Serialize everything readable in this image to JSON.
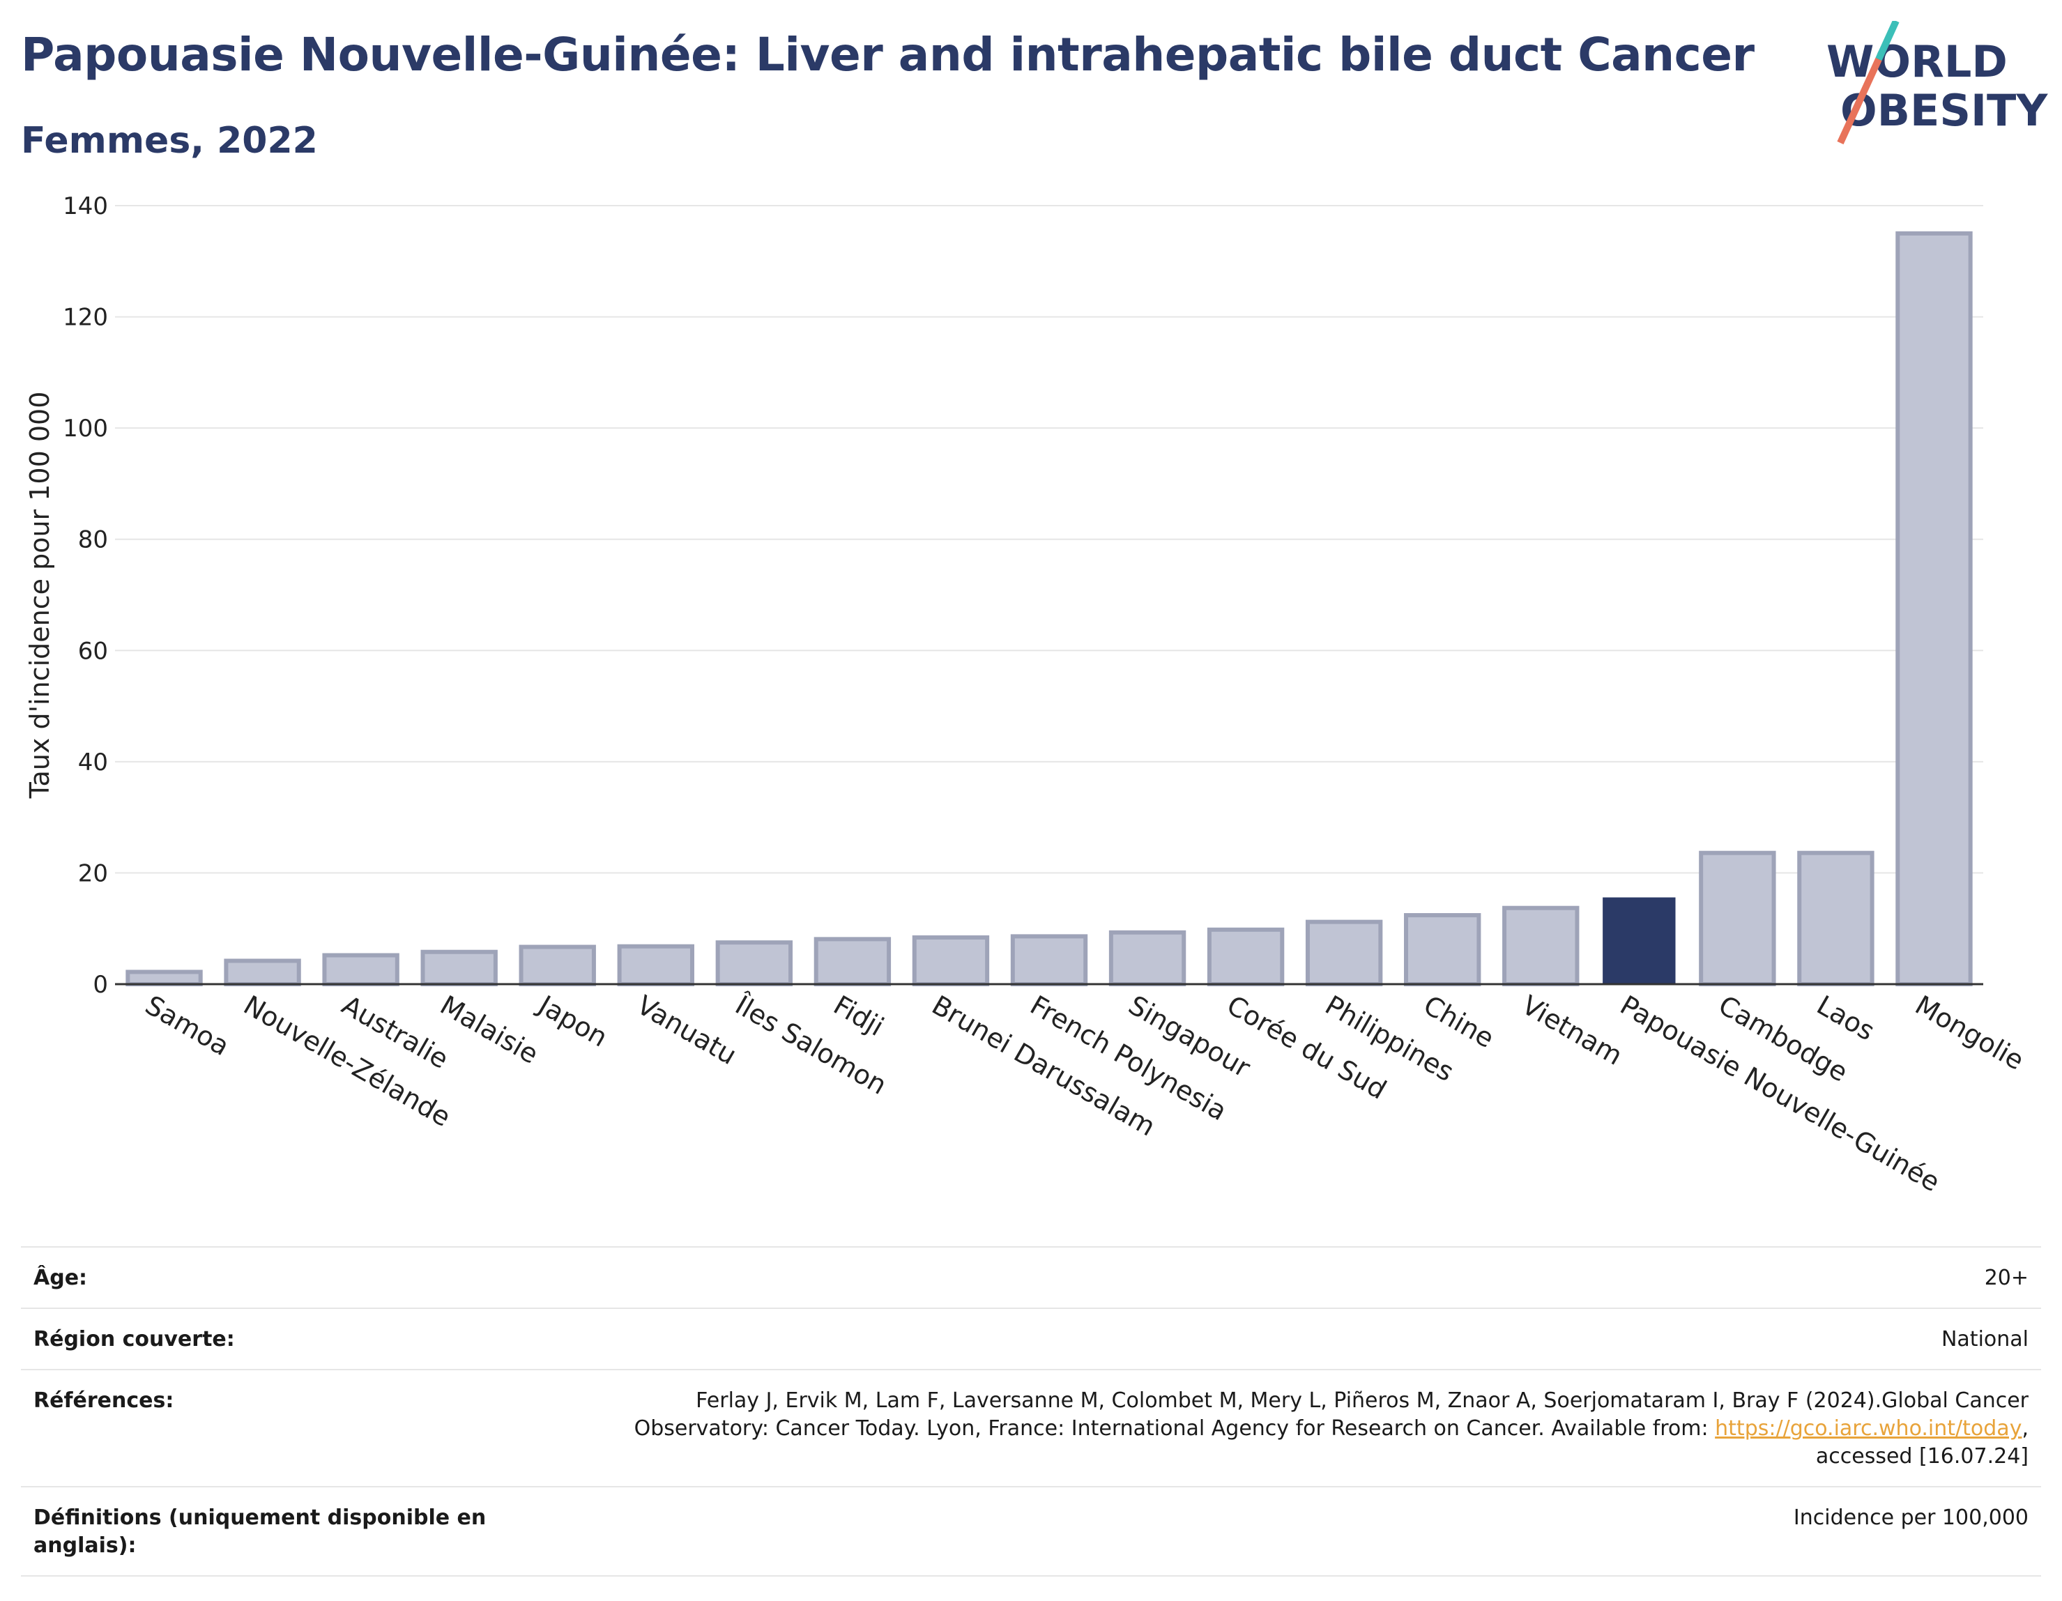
{
  "header": {
    "title": "Papouasie Nouvelle-Guinée: Liver and intrahepatic bile duct Cancer",
    "subtitle": "Femmes, 2022"
  },
  "logo": {
    "line1": "WORLD",
    "line2": "OBESITY"
  },
  "chart_data": {
    "type": "bar",
    "ylabel": "Taux d'incidence pour 100 000",
    "ylim": [
      0,
      140
    ],
    "yticks": [
      0,
      20,
      40,
      60,
      80,
      100,
      120,
      140
    ],
    "grid": true,
    "highlight": "Papouasie Nouvelle-Guinée",
    "colors": {
      "default": "#c0c4d4",
      "default_border": "#9ea3b8",
      "highlight": "#2b3a67"
    },
    "categories": [
      "Samoa",
      "Nouvelle-Zélande",
      "Australie",
      "Malaisie",
      "Japon",
      "Vanuatu",
      "Îles Salomon",
      "Fidji",
      "Brunei Darussalam",
      "French Polynesia",
      "Singapour",
      "Corée du Sud",
      "Philippines",
      "Chine",
      "Vietnam",
      "Papouasie Nouvelle-Guinée",
      "Cambodge",
      "Laos",
      "Mongolie"
    ],
    "values": [
      2.2,
      4.2,
      5.2,
      5.8,
      6.7,
      6.8,
      7.5,
      8.1,
      8.4,
      8.6,
      9.3,
      9.8,
      11.2,
      12.4,
      13.7,
      15.6,
      23.6,
      23.6,
      135.0
    ]
  },
  "meta": [
    {
      "label": "Âge:",
      "value": "20+"
    },
    {
      "label": "Région couverte:",
      "value": "National"
    },
    {
      "label": "Références:",
      "value_before": "Ferlay J, Ervik M, Lam F, Laversanne M, Colombet M, Mery L, Piñeros M, Znaor A, Soerjomataram I, Bray F (2024).Global Cancer Observatory: Cancer Today. Lyon, France: International Agency for Research on Cancer. Available from: ",
      "link": "https://gco.iarc.who.int/today",
      "value_after": ", accessed [16.07.24]"
    },
    {
      "label": "Définitions (uniquement disponible en anglais):",
      "value": "Incidence per 100,000"
    }
  ]
}
